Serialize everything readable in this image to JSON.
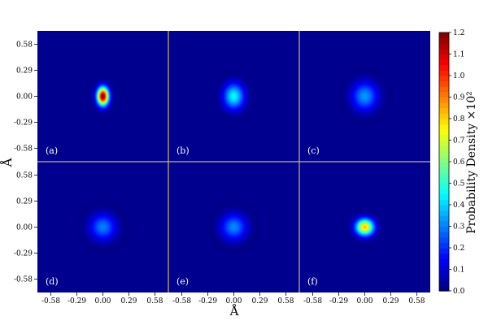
{
  "chart_data": {
    "type": "heatmap",
    "layout": {
      "rows": 2,
      "cols": 3
    },
    "xlabel": "Å",
    "ylabel": "Å",
    "x_ticks": [
      "-0.58",
      "-0.29",
      "0.00",
      "0.29",
      "0.58"
    ],
    "y_ticks": [
      "0.58",
      "0.29",
      "0.00",
      "-0.29",
      "-0.58"
    ],
    "tick_values": [
      -0.58,
      -0.29,
      0.0,
      0.29,
      0.58
    ],
    "xlim": [
      -0.73,
      0.73
    ],
    "ylim": [
      -0.73,
      0.73
    ],
    "colorbar": {
      "label": "Probability Density ×10²",
      "ticks": [
        "0.0",
        "0.1",
        "0.2",
        "0.3",
        "0.4",
        "0.5",
        "0.6",
        "0.7",
        "0.8",
        "0.9",
        "1.0",
        "1.1",
        "1.2"
      ],
      "vmin": 0.0,
      "vmax": 1.2,
      "colormap": "jet"
    },
    "separator_color": "#c8b96a",
    "background_color": "#00008f",
    "panels": [
      {
        "label": "(a)",
        "center": [
          0.0,
          0.0
        ],
        "sx": 0.045,
        "sy": 0.07,
        "peak": 1.2
      },
      {
        "label": "(b)",
        "center": [
          0.0,
          0.0
        ],
        "sx": 0.08,
        "sy": 0.1,
        "peak": 0.45
      },
      {
        "label": "(c)",
        "center": [
          0.0,
          0.0
        ],
        "sx": 0.1,
        "sy": 0.11,
        "peak": 0.33
      },
      {
        "label": "(d)",
        "center": [
          0.0,
          0.0
        ],
        "sx": 0.1,
        "sy": 0.1,
        "peak": 0.3
      },
      {
        "label": "(e)",
        "center": [
          0.0,
          0.0
        ],
        "sx": 0.1,
        "sy": 0.1,
        "peak": 0.31
      },
      {
        "label": "(f)",
        "center": [
          0.0,
          0.0
        ],
        "sx": 0.07,
        "sy": 0.065,
        "peak": 0.82
      }
    ]
  }
}
